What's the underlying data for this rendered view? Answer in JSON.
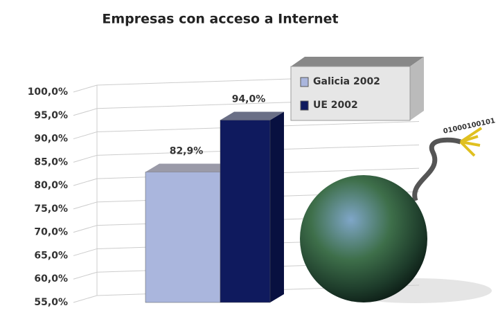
{
  "chart_data": {
    "type": "bar",
    "title": "Empresas con acceso a Internet",
    "categories": [
      null
    ],
    "series": [
      {
        "name": "Galicia 2002",
        "color": "#aab6dd",
        "values": [
          82.9
        ],
        "value_labels": [
          "82,9%"
        ]
      },
      {
        "name": "UE 2002",
        "color": "#0f1a5e",
        "values": [
          94.0
        ],
        "value_labels": [
          "94,0%"
        ]
      }
    ],
    "ylim": [
      55,
      100
    ],
    "yticks": [
      {
        "value": 55,
        "label": "55,0%"
      },
      {
        "value": 60,
        "label": "60,0%"
      },
      {
        "value": 65,
        "label": "65,0%"
      },
      {
        "value": 70,
        "label": "70,0%"
      },
      {
        "value": 75,
        "label": "75,0%"
      },
      {
        "value": 80,
        "label": "80,0%"
      },
      {
        "value": 85,
        "label": "85,0%"
      },
      {
        "value": 90,
        "label": "90,0%"
      },
      {
        "value": 95,
        "label": "95,0%"
      },
      {
        "value": 100,
        "label": "100,0%"
      }
    ],
    "grid": true,
    "legend": "top-right",
    "annotation": "01000100101"
  }
}
